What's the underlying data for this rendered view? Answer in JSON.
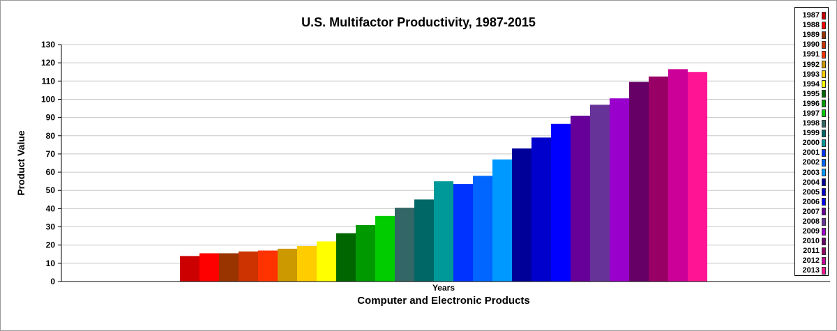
{
  "chart_data": {
    "type": "bar",
    "title": "U.S. Multifactor Productivity, 1987-2015",
    "subtitle": "",
    "xlabel": "Years",
    "x_category_label": "Computer and Electronic Products",
    "ylabel": "Product Value",
    "ylim": [
      0,
      130
    ],
    "yticks": [
      0,
      10,
      20,
      30,
      40,
      50,
      60,
      70,
      80,
      90,
      100,
      110,
      120,
      130
    ],
    "ytick_labels": [
      "0",
      "10",
      "20",
      "30",
      "40",
      "50",
      "60",
      "70",
      "80",
      "90",
      "100",
      "110",
      "120",
      "130"
    ],
    "grid": true,
    "legend_position": "right",
    "series": [
      {
        "name": "1987",
        "value": 14,
        "color": "#cc0000"
      },
      {
        "name": "1988",
        "value": 15.5,
        "color": "#ff0000"
      },
      {
        "name": "1989",
        "value": 15.5,
        "color": "#993300"
      },
      {
        "name": "1990",
        "value": 16.5,
        "color": "#cc3300"
      },
      {
        "name": "1991",
        "value": 17,
        "color": "#ff3300"
      },
      {
        "name": "1992",
        "value": 18,
        "color": "#cc9900"
      },
      {
        "name": "1993",
        "value": 19.5,
        "color": "#ffcc00"
      },
      {
        "name": "1994",
        "value": 22,
        "color": "#ffff00"
      },
      {
        "name": "1995",
        "value": 26.5,
        "color": "#006600"
      },
      {
        "name": "1996",
        "value": 31,
        "color": "#009900"
      },
      {
        "name": "1997",
        "value": 36,
        "color": "#00cc00"
      },
      {
        "name": "1998",
        "value": 40.5,
        "color": "#336666"
      },
      {
        "name": "1999",
        "value": 45,
        "color": "#006666"
      },
      {
        "name": "2000",
        "value": 55,
        "color": "#009999"
      },
      {
        "name": "2001",
        "value": 53.5,
        "color": "#0033ff"
      },
      {
        "name": "2002",
        "value": 58,
        "color": "#0066ff"
      },
      {
        "name": "2003",
        "value": 67,
        "color": "#0099ff"
      },
      {
        "name": "2004",
        "value": 73,
        "color": "#000099"
      },
      {
        "name": "2005",
        "value": 79,
        "color": "#0000cc"
      },
      {
        "name": "2006",
        "value": 86.5,
        "color": "#0000ff"
      },
      {
        "name": "2007",
        "value": 91,
        "color": "#660099"
      },
      {
        "name": "2008",
        "value": 97,
        "color": "#663399"
      },
      {
        "name": "2009",
        "value": 100.5,
        "color": "#9900cc"
      },
      {
        "name": "2010",
        "value": 109.5,
        "color": "#660066"
      },
      {
        "name": "2011",
        "value": 112.5,
        "color": "#990066"
      },
      {
        "name": "2012",
        "value": 116.5,
        "color": "#cc0099"
      },
      {
        "name": "2013",
        "value": 115,
        "color": "#ff1493"
      }
    ]
  }
}
